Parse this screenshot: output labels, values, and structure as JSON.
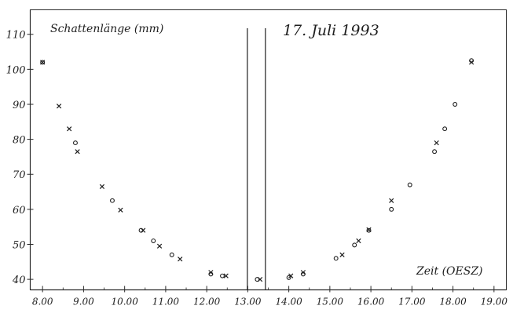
{
  "chart_data": {
    "type": "scatter",
    "title": "17. Juli 1993",
    "ylabel": "Schattenlänge (mm)",
    "xlabel": "Zeit (OESZ)",
    "xlim": [
      7.7,
      19.3
    ],
    "ylim": [
      37,
      117
    ],
    "x_ticks": [
      8,
      9,
      10,
      11,
      12,
      13,
      14,
      15,
      16,
      17,
      18,
      19
    ],
    "x_tick_labels": [
      "8.00",
      "9.00",
      "10.00",
      "11.00",
      "12.00",
      "13.00",
      "14.00",
      "15.00",
      "16.00",
      "17.00",
      "18.00",
      "19.00"
    ],
    "y_ticks": [
      40,
      50,
      60,
      70,
      80,
      90,
      100,
      110
    ],
    "y_tick_labels": [
      "40",
      "50",
      "60",
      "70",
      "80",
      "90",
      "100",
      "110"
    ],
    "vertical_lines": [
      12.99,
      13.43
    ],
    "grid": false,
    "legend": "none",
    "series": [
      {
        "marker": "x",
        "points": [
          [
            8.0,
            102
          ],
          [
            8.4,
            89.5
          ],
          [
            8.65,
            83
          ],
          [
            8.85,
            76.5
          ],
          [
            9.45,
            66.5
          ],
          [
            9.9,
            59.8
          ],
          [
            10.45,
            54
          ],
          [
            10.85,
            49.5
          ],
          [
            11.35,
            45.8
          ],
          [
            12.1,
            42
          ],
          [
            12.47,
            41
          ],
          [
            13.3,
            40
          ],
          [
            14.05,
            41
          ],
          [
            14.35,
            42
          ],
          [
            15.3,
            47
          ],
          [
            15.7,
            51
          ],
          [
            15.95,
            54.2
          ],
          [
            16.5,
            62.5
          ],
          [
            17.6,
            79
          ],
          [
            18.45,
            102
          ]
        ]
      },
      {
        "marker": "o",
        "points": [
          [
            8.0,
            102
          ],
          [
            8.8,
            79
          ],
          [
            9.7,
            62.5
          ],
          [
            10.4,
            54
          ],
          [
            10.7,
            51
          ],
          [
            11.15,
            47
          ],
          [
            12.1,
            41.5
          ],
          [
            12.38,
            41
          ],
          [
            13.23,
            40
          ],
          [
            14.0,
            40.5
          ],
          [
            14.35,
            41.5
          ],
          [
            15.15,
            46
          ],
          [
            15.6,
            49.8
          ],
          [
            15.95,
            54
          ],
          [
            16.5,
            60
          ],
          [
            16.95,
            67
          ],
          [
            17.55,
            76.5
          ],
          [
            17.8,
            83
          ],
          [
            18.05,
            90
          ],
          [
            18.45,
            102.5
          ]
        ]
      }
    ]
  }
}
